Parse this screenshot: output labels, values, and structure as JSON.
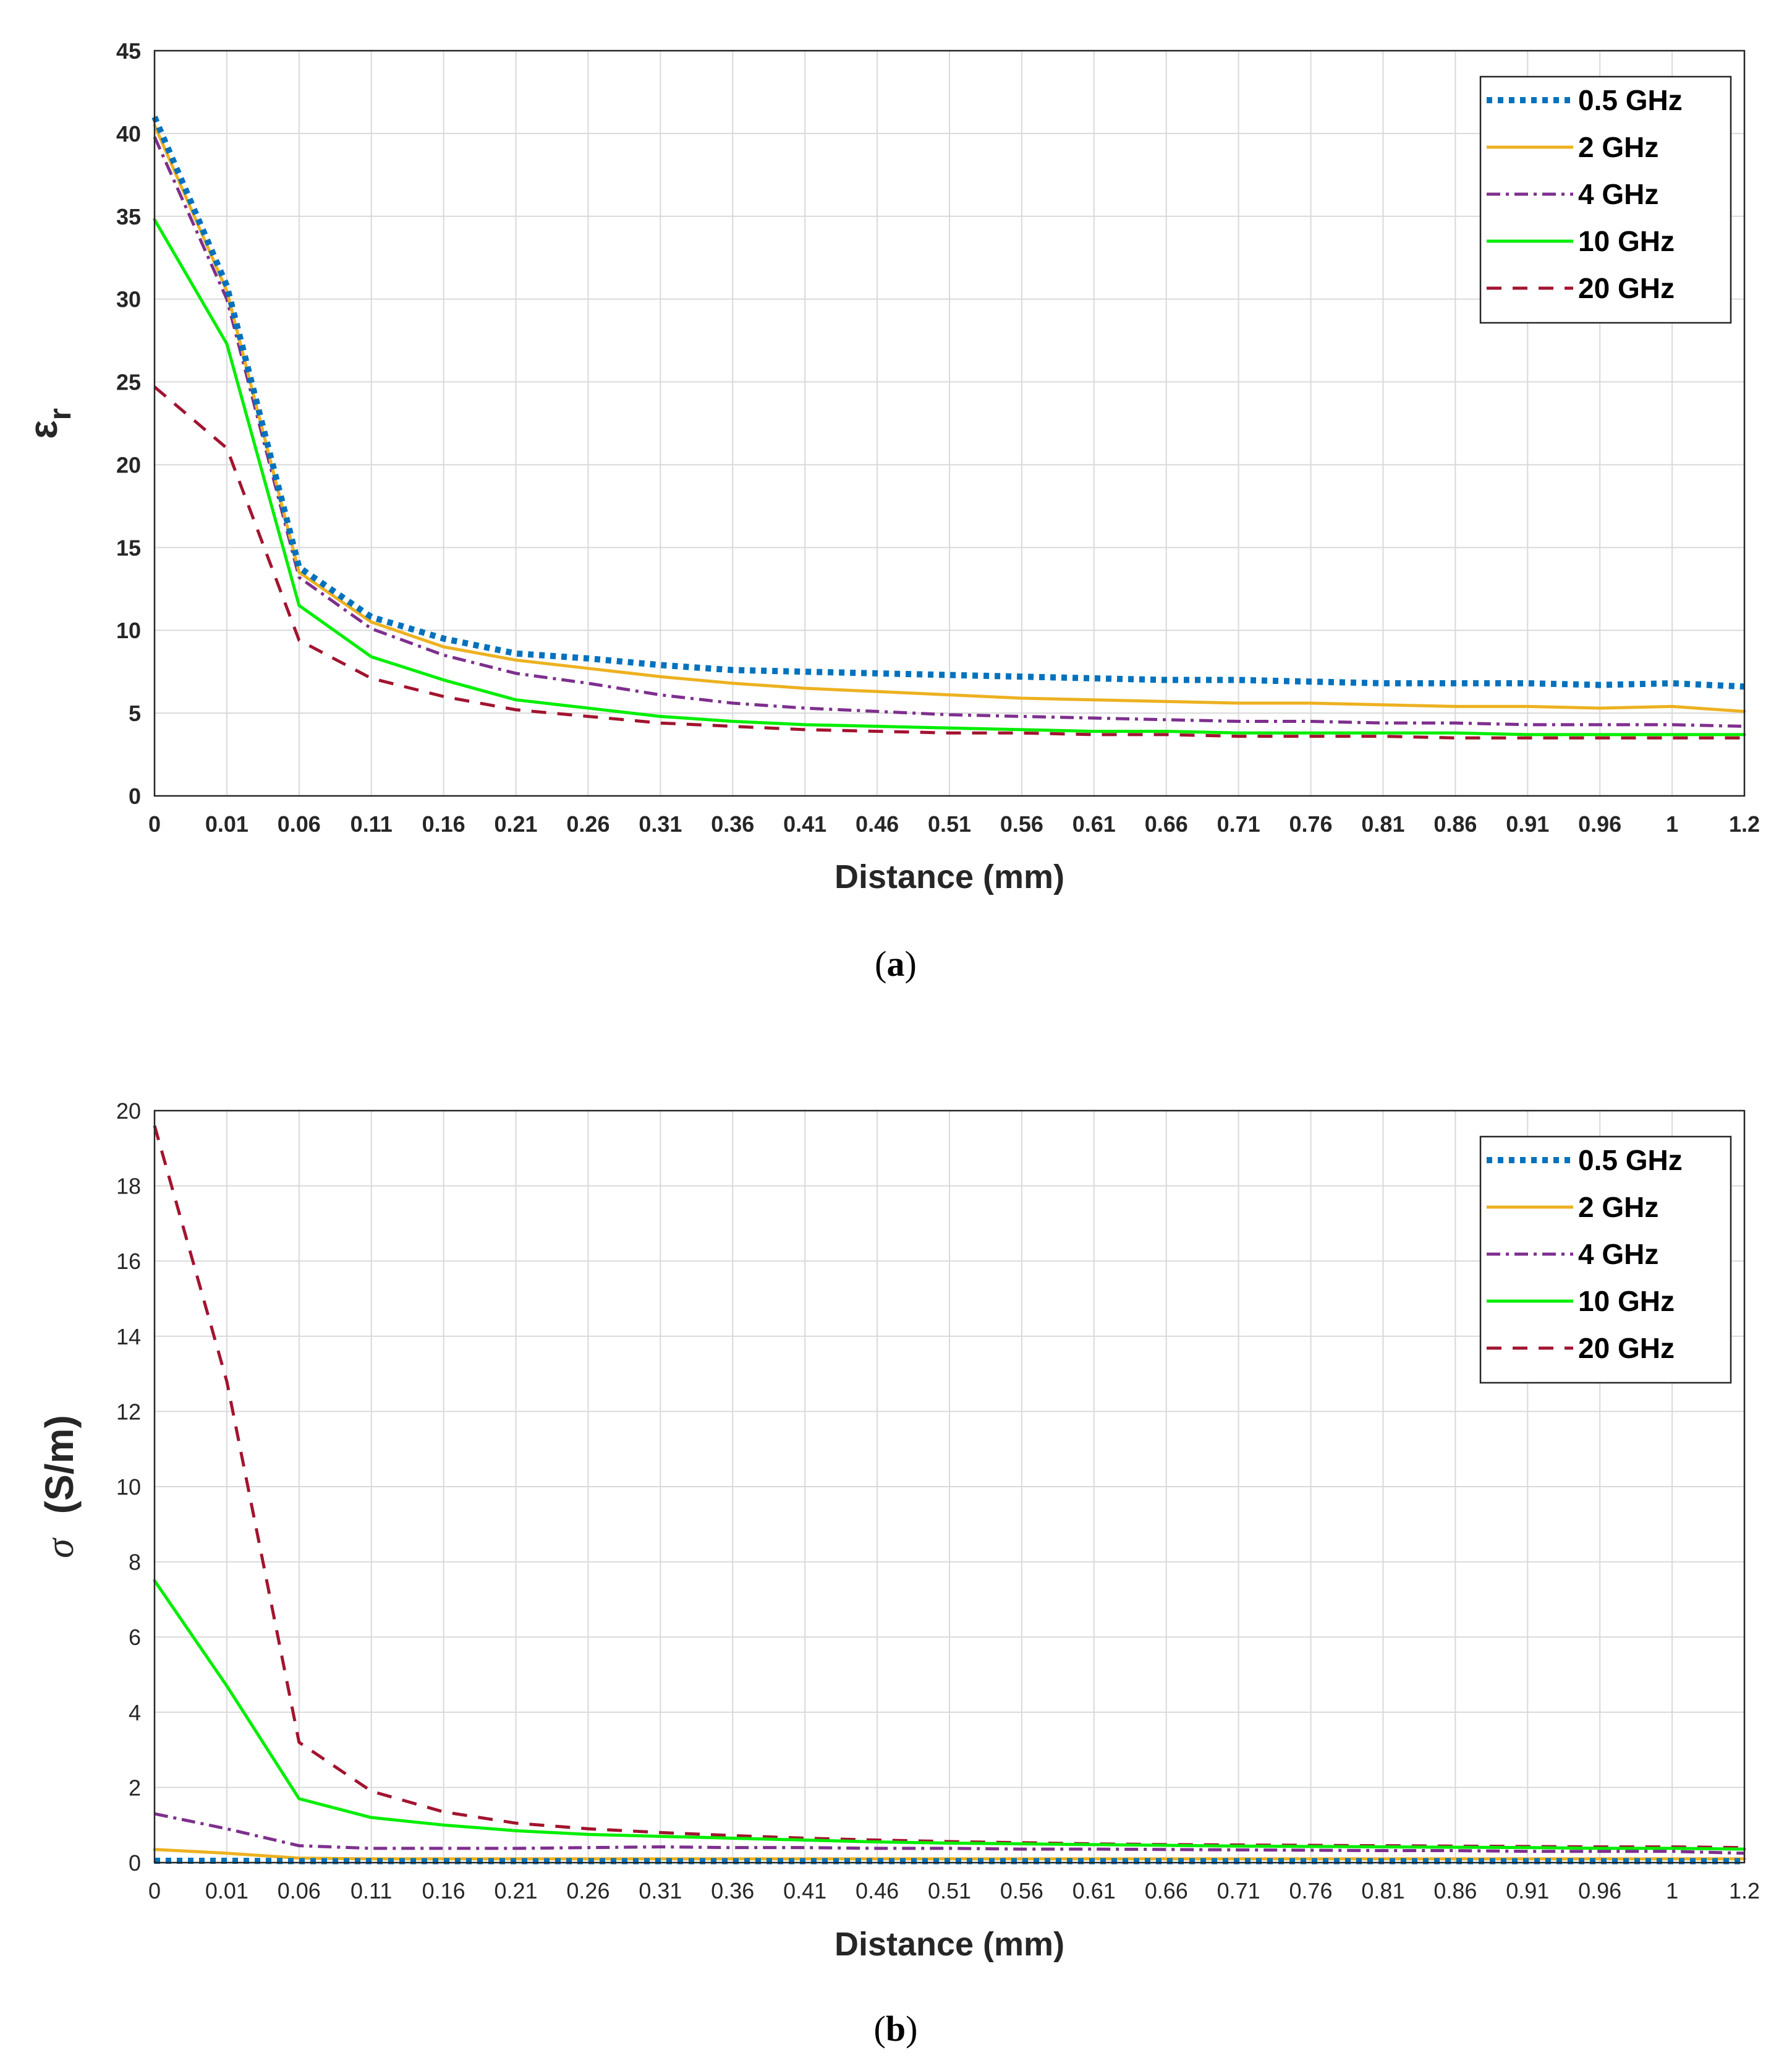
{
  "chart_data": [
    {
      "id": "a",
      "type": "line",
      "caption_label": "a",
      "xlabel": "Distance (mm)",
      "ylabel_main": "ε",
      "ylabel_sub": "r",
      "ylim": [
        0,
        45
      ],
      "yticks": [
        "0",
        "5",
        "10",
        "15",
        "20",
        "25",
        "30",
        "35",
        "40",
        "45"
      ],
      "categories": [
        "0",
        "0.01",
        "0.06",
        "0.11",
        "0.16",
        "0.21",
        "0.26",
        "0.31",
        "0.36",
        "0.41",
        "0.46",
        "0.51",
        "0.56",
        "0.61",
        "0.66",
        "0.71",
        "0.76",
        "0.81",
        "0.86",
        "0.91",
        "0.96",
        "1",
        "1.2"
      ],
      "legend_position": "top-right",
      "grid": true,
      "series": [
        {
          "name": "0.5 GHz",
          "color": "#0072BD",
          "style": "dotted",
          "values": [
            41.0,
            30.8,
            13.8,
            10.8,
            9.5,
            8.6,
            8.3,
            7.9,
            7.6,
            7.5,
            7.4,
            7.3,
            7.2,
            7.1,
            7.0,
            7.0,
            6.9,
            6.8,
            6.8,
            6.8,
            6.7,
            6.8,
            6.6
          ]
        },
        {
          "name": "2 GHz",
          "color": "#EDB120",
          "style": "solid",
          "values": [
            40.5,
            30.5,
            13.5,
            10.5,
            9.0,
            8.2,
            7.7,
            7.2,
            6.8,
            6.5,
            6.3,
            6.1,
            5.9,
            5.8,
            5.7,
            5.6,
            5.6,
            5.5,
            5.4,
            5.4,
            5.3,
            5.4,
            5.1
          ]
        },
        {
          "name": "4 GHz",
          "color": "#7E2F8E",
          "style": "dashdot",
          "values": [
            39.8,
            30.0,
            13.2,
            10.1,
            8.5,
            7.4,
            6.8,
            6.1,
            5.6,
            5.3,
            5.1,
            4.9,
            4.8,
            4.7,
            4.6,
            4.5,
            4.5,
            4.4,
            4.4,
            4.3,
            4.3,
            4.3,
            4.2
          ]
        },
        {
          "name": "10 GHz",
          "color": "#00EE00",
          "style": "solid",
          "values": [
            34.8,
            27.3,
            11.5,
            8.4,
            7.0,
            5.8,
            5.3,
            4.8,
            4.5,
            4.3,
            4.2,
            4.1,
            4.0,
            3.9,
            3.9,
            3.8,
            3.8,
            3.8,
            3.8,
            3.7,
            3.7,
            3.7,
            3.7
          ]
        },
        {
          "name": "20 GHz",
          "color": "#A2142F",
          "style": "dashed",
          "values": [
            24.7,
            21.0,
            9.4,
            7.1,
            6.0,
            5.2,
            4.8,
            4.4,
            4.2,
            4.0,
            3.9,
            3.8,
            3.8,
            3.7,
            3.7,
            3.6,
            3.6,
            3.6,
            3.5,
            3.5,
            3.5,
            3.5,
            3.5
          ]
        }
      ]
    },
    {
      "id": "b",
      "type": "line",
      "caption_label": "b",
      "xlabel": "Distance (mm)",
      "ylabel_main": "σ",
      "ylabel_sub": "(S/m)",
      "ylim": [
        0,
        20
      ],
      "yticks": [
        "0",
        "2",
        "4",
        "6",
        "8",
        "10",
        "12",
        "14",
        "16",
        "18",
        "20"
      ],
      "categories": [
        "0",
        "0.01",
        "0.06",
        "0.11",
        "0.16",
        "0.21",
        "0.26",
        "0.31",
        "0.36",
        "0.41",
        "0.46",
        "0.51",
        "0.56",
        "0.61",
        "0.66",
        "0.71",
        "0.76",
        "0.81",
        "0.86",
        "0.91",
        "0.96",
        "1",
        "1.2"
      ],
      "legend_position": "top-right",
      "grid": true,
      "series": [
        {
          "name": "0.5 GHz",
          "color": "#0072BD",
          "style": "dotted",
          "values": [
            0.05,
            0.05,
            0.04,
            0.04,
            0.04,
            0.04,
            0.04,
            0.04,
            0.04,
            0.04,
            0.04,
            0.04,
            0.04,
            0.04,
            0.04,
            0.04,
            0.04,
            0.04,
            0.04,
            0.04,
            0.04,
            0.04,
            0.04
          ]
        },
        {
          "name": "2 GHz",
          "color": "#EDB120",
          "style": "solid",
          "values": [
            0.35,
            0.25,
            0.12,
            0.1,
            0.1,
            0.1,
            0.1,
            0.1,
            0.1,
            0.1,
            0.1,
            0.1,
            0.1,
            0.1,
            0.1,
            0.1,
            0.1,
            0.1,
            0.1,
            0.1,
            0.1,
            0.1,
            0.1
          ]
        },
        {
          "name": "4 GHz",
          "color": "#7E2F8E",
          "style": "dashdot",
          "values": [
            1.3,
            0.9,
            0.45,
            0.38,
            0.38,
            0.38,
            0.4,
            0.42,
            0.4,
            0.4,
            0.38,
            0.38,
            0.36,
            0.36,
            0.35,
            0.34,
            0.33,
            0.32,
            0.32,
            0.3,
            0.3,
            0.3,
            0.25
          ]
        },
        {
          "name": "10 GHz",
          "color": "#00EE00",
          "style": "solid",
          "values": [
            7.5,
            4.7,
            1.7,
            1.2,
            1.0,
            0.85,
            0.75,
            0.7,
            0.65,
            0.6,
            0.55,
            0.52,
            0.5,
            0.48,
            0.46,
            0.44,
            0.43,
            0.42,
            0.41,
            0.4,
            0.38,
            0.38,
            0.36
          ]
        },
        {
          "name": "20 GHz",
          "color": "#A2142F",
          "style": "dashed",
          "values": [
            19.6,
            12.8,
            3.2,
            1.9,
            1.35,
            1.05,
            0.9,
            0.8,
            0.72,
            0.65,
            0.6,
            0.56,
            0.53,
            0.5,
            0.48,
            0.47,
            0.46,
            0.45,
            0.44,
            0.43,
            0.42,
            0.42,
            0.4
          ]
        }
      ]
    }
  ]
}
